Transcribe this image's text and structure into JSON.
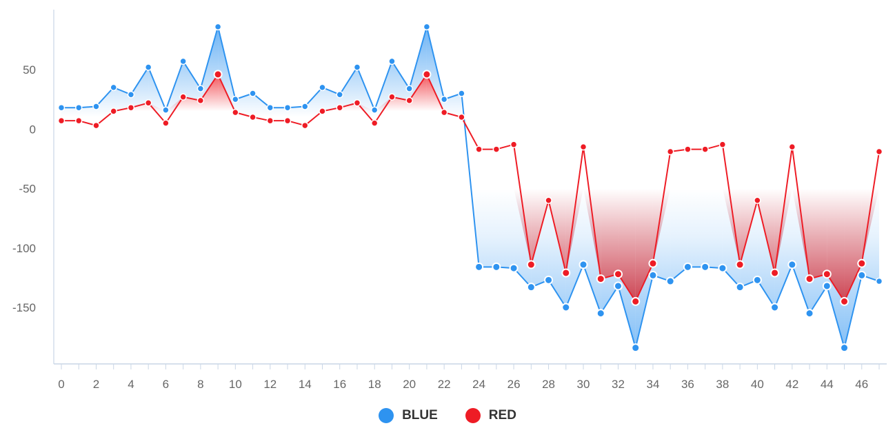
{
  "chart_data": {
    "type": "line",
    "x": [
      0,
      1,
      2,
      3,
      4,
      5,
      6,
      7,
      8,
      9,
      10,
      11,
      12,
      13,
      14,
      15,
      16,
      17,
      18,
      19,
      20,
      21,
      22,
      23,
      24,
      25,
      26,
      27,
      28,
      29,
      30,
      31,
      32,
      33,
      34,
      35,
      36,
      37,
      38,
      39,
      40,
      41,
      42,
      43,
      44,
      45,
      46,
      47
    ],
    "series": [
      {
        "name": "BLUE",
        "color": "#2e93f0",
        "values": [
          18,
          18,
          19,
          35,
          29,
          52,
          16,
          57,
          34,
          86,
          25,
          30,
          18,
          18,
          19,
          35,
          29,
          52,
          16,
          57,
          34,
          86,
          25,
          30,
          -116,
          -116,
          -117,
          -133,
          -127,
          -150,
          -114,
          -155,
          -132,
          -184,
          -123,
          -128,
          -116,
          -116,
          -117,
          -133,
          -127,
          -150,
          -114,
          -155,
          -132,
          -184,
          -123,
          -128
        ]
      },
      {
        "name": "RED",
        "color": "#ee1c25",
        "values": [
          7,
          7,
          3,
          15,
          18,
          22,
          5,
          27,
          24,
          46,
          14,
          10,
          7,
          7,
          3,
          15,
          18,
          22,
          5,
          27,
          24,
          46,
          14,
          10,
          -17,
          -17,
          -13,
          -114,
          -60,
          -121,
          -15,
          -126,
          -122,
          -145,
          -113,
          -19,
          -17,
          -17,
          -13,
          -114,
          -60,
          -121,
          -15,
          -126,
          -122,
          -145,
          -113,
          -19
        ]
      }
    ],
    "y_ticks": [
      50,
      0,
      -50,
      -100,
      -150
    ],
    "x_ticks": [
      0,
      2,
      4,
      6,
      8,
      10,
      12,
      14,
      16,
      18,
      20,
      22,
      24,
      26,
      28,
      30,
      32,
      34,
      36,
      38,
      40,
      42,
      44,
      46
    ],
    "ylim": [
      -200,
      100
    ],
    "xlim": [
      0,
      47
    ],
    "legend_position": "bottom-center",
    "grid": false,
    "fill": "area between series (blue where BLUE above RED magnitude, red otherwise) with gradient"
  },
  "legend": {
    "items": [
      {
        "label": "BLUE",
        "color": "#2e93f0"
      },
      {
        "label": "RED",
        "color": "#ee1c25"
      }
    ]
  }
}
